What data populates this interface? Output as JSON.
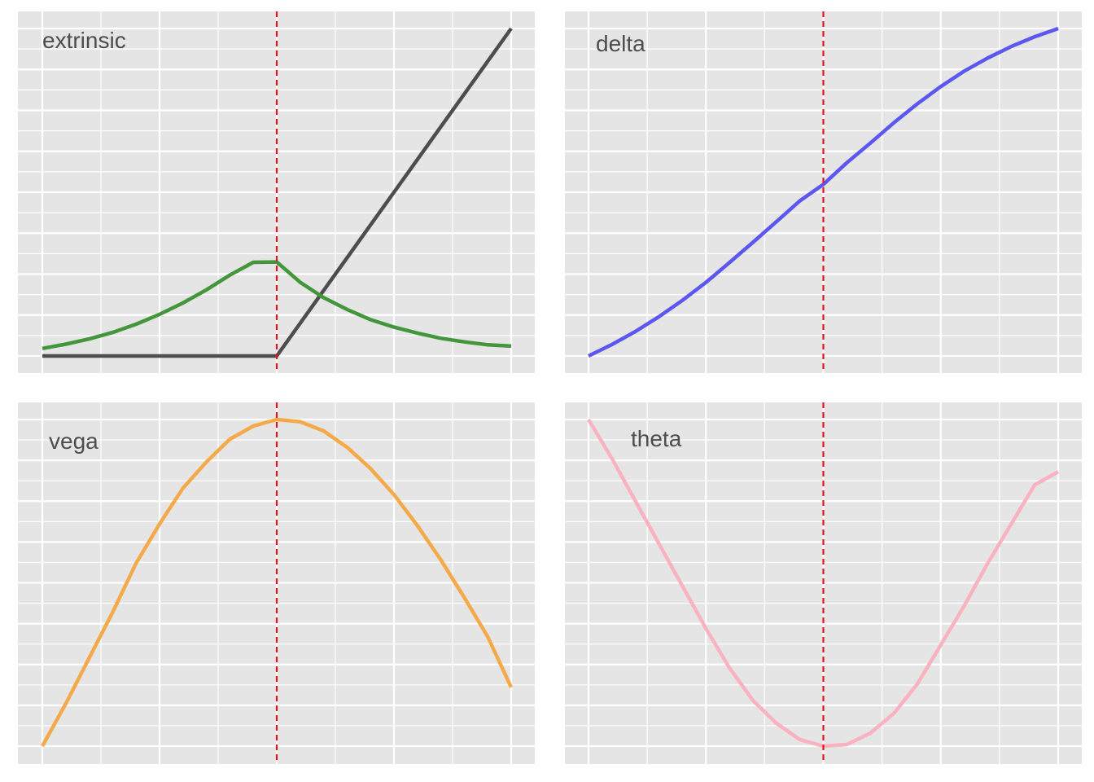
{
  "chart_data": [
    {
      "type": "line",
      "title": "extrinsic",
      "x": [
        0,
        5,
        10,
        15,
        20,
        25,
        30,
        35,
        40,
        45,
        50,
        55,
        60,
        65,
        70,
        75,
        80,
        85,
        90,
        95,
        100
      ],
      "xlim": [
        0,
        100
      ],
      "ylim": [
        0,
        1
      ],
      "strike": 50,
      "grid": true,
      "colors": {
        "payoff": "#4d4d4d",
        "option_value": "#43963b",
        "strike_line": "#e3151a",
        "panel_bg": "#e5e5e5",
        "grid": "#ffffff"
      },
      "series": [
        {
          "values": [
            0,
            0,
            0,
            0,
            0,
            0,
            0,
            0,
            0,
            0,
            0,
            0.1,
            0.2,
            0.3,
            0.4,
            0.5,
            0.6,
            0.7,
            0.8,
            0.9,
            1.0
          ]
        },
        {
          "values": [
            0.023,
            0.036,
            0.052,
            0.072,
            0.097,
            0.127,
            0.162,
            0.202,
            0.247,
            0.286,
            0.287,
            0.225,
            0.178,
            0.142,
            0.111,
            0.088,
            0.07,
            0.054,
            0.043,
            0.034,
            0.03
          ]
        }
      ]
    },
    {
      "type": "line",
      "title": "delta",
      "x": [
        0,
        5,
        10,
        15,
        20,
        25,
        30,
        35,
        40,
        45,
        50,
        55,
        60,
        65,
        70,
        75,
        80,
        85,
        90,
        95,
        100
      ],
      "xlim": [
        0,
        100
      ],
      "ylim": [
        0,
        1
      ],
      "strike": 50,
      "grid": true,
      "colors": {
        "line": "#5b57f0",
        "strike_line": "#e3151a",
        "panel_bg": "#e5e5e5",
        "grid": "#ffffff"
      },
      "series": [
        {
          "values": [
            0.0,
            0.035,
            0.075,
            0.12,
            0.17,
            0.225,
            0.285,
            0.347,
            0.41,
            0.474,
            0.524,
            0.59,
            0.65,
            0.712,
            0.77,
            0.823,
            0.87,
            0.91,
            0.945,
            0.975,
            1.0
          ]
        }
      ]
    },
    {
      "type": "line",
      "title": "vega",
      "x": [
        0,
        5,
        10,
        15,
        20,
        25,
        30,
        35,
        40,
        45,
        50,
        55,
        60,
        65,
        70,
        75,
        80,
        85,
        90,
        95,
        100
      ],
      "xlim": [
        0,
        100
      ],
      "ylim": [
        0,
        1
      ],
      "strike": 50,
      "grid": true,
      "colors": {
        "line": "#f4a94a",
        "strike_line": "#e3151a",
        "panel_bg": "#e5e5e5",
        "grid": "#ffffff"
      },
      "series": [
        {
          "values": [
            0.0,
            0.13,
            0.27,
            0.41,
            0.56,
            0.68,
            0.79,
            0.87,
            0.94,
            0.98,
            1.0,
            0.993,
            0.965,
            0.915,
            0.85,
            0.77,
            0.675,
            0.57,
            0.455,
            0.335,
            0.18
          ]
        }
      ]
    },
    {
      "type": "line",
      "title": "theta",
      "x": [
        0,
        5,
        10,
        15,
        20,
        25,
        30,
        35,
        40,
        45,
        50,
        55,
        60,
        65,
        70,
        75,
        80,
        85,
        90,
        95,
        100
      ],
      "xlim": [
        0,
        100
      ],
      "ylim": [
        0,
        1
      ],
      "strike": 50,
      "grid": true,
      "colors": {
        "line": "#f9b2c0",
        "strike_line": "#e3151a",
        "panel_bg": "#e5e5e5",
        "grid": "#ffffff"
      },
      "series": [
        {
          "values": [
            1.0,
            0.88,
            0.75,
            0.62,
            0.49,
            0.36,
            0.24,
            0.14,
            0.07,
            0.02,
            0.0,
            0.005,
            0.04,
            0.1,
            0.19,
            0.31,
            0.43,
            0.56,
            0.68,
            0.8,
            0.84
          ]
        }
      ]
    }
  ]
}
